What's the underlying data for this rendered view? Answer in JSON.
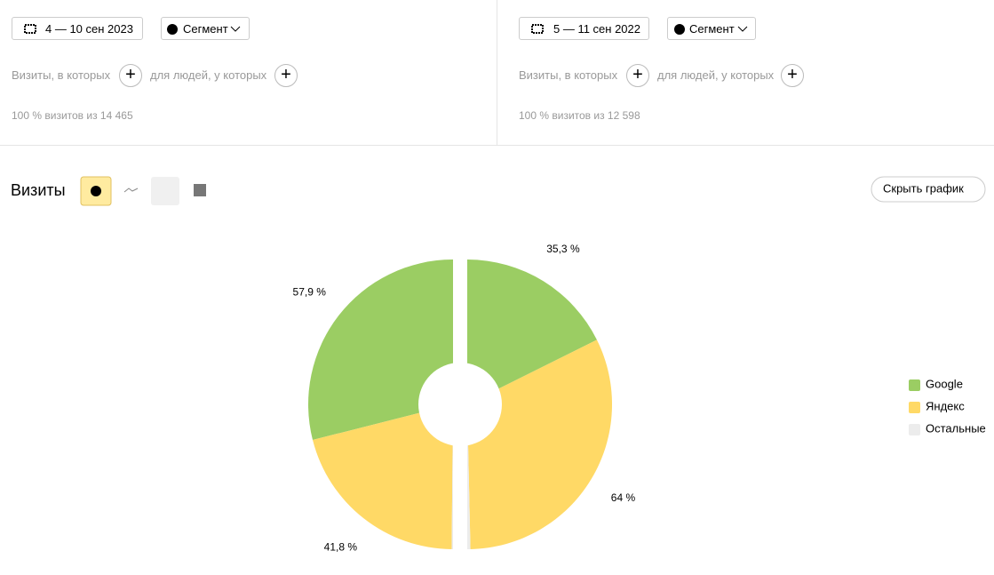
{
  "panels": [
    {
      "date": "4 — 10 сен 2023",
      "segment": "Сегмент",
      "filter_visits": "Визиты, в которых",
      "filter_people": "для людей, у которых",
      "summary": "100 % визитов из 14 465"
    },
    {
      "date": "5 — 11 сен 2022",
      "segment": "Сегмент",
      "filter_visits": "Визиты, в которых",
      "filter_people": "для людей, у которых",
      "summary": "100 % визитов из 12 598"
    }
  ],
  "report_title": "Визиты",
  "hide_chart": "Скрыть график",
  "chart_data": {
    "type": "split-pie",
    "categories": [
      "Google",
      "Яндекс",
      "Остальные"
    ],
    "colors": [
      "#9bcd63",
      "#ffd966",
      "#ececec"
    ],
    "series": [
      {
        "values": [
          57.9,
          41.8,
          0.3
        ],
        "value_labels": [
          "57,9 %",
          "41,8 %",
          null
        ]
      },
      {
        "values": [
          35.3,
          64,
          0.7
        ],
        "value_labels": [
          "35,3 %",
          "64 %",
          null
        ]
      }
    ]
  }
}
